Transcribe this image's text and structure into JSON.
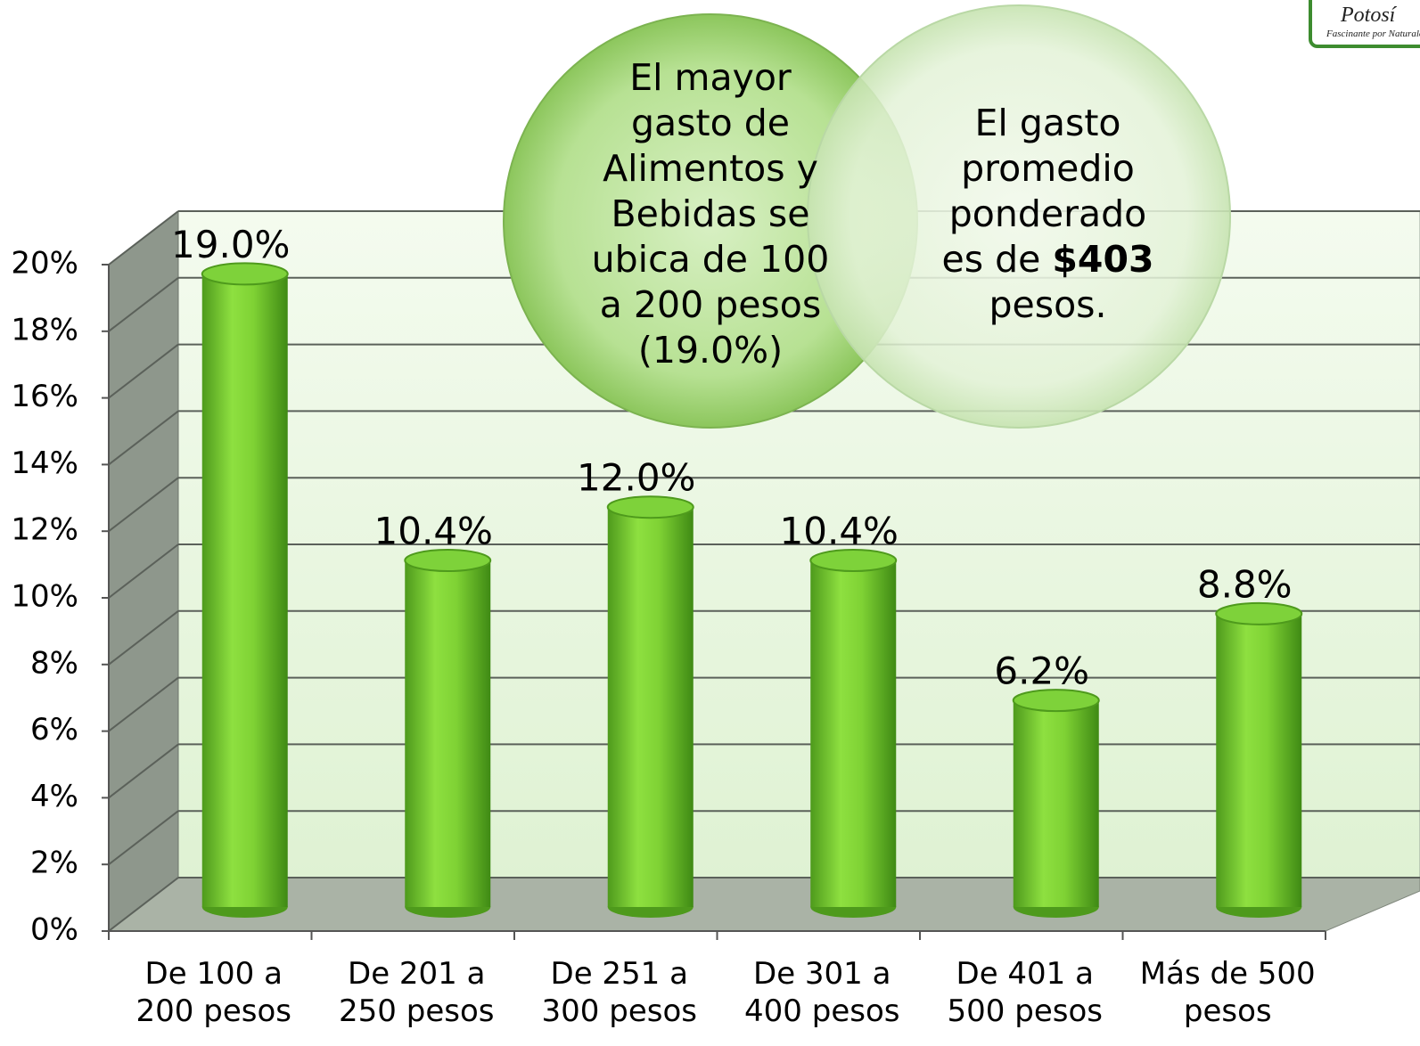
{
  "chart_data": {
    "type": "bar3d",
    "categories": [
      "De 100 a 200 pesos",
      "De 201 a 250 pesos",
      "De 251 a 300 pesos",
      "De 301 a 400 pesos",
      "De 401 a 500 pesos",
      "Más de 500 pesos"
    ],
    "values": [
      19.0,
      10.4,
      12.0,
      10.4,
      6.2,
      8.8
    ],
    "value_labels": [
      "19.0%",
      "10.4%",
      "12.0%",
      "10.4%",
      "6.2%",
      "8.8%"
    ],
    "color": "#7ed23a",
    "ylim": [
      0,
      20
    ],
    "yticks": [
      {
        "value": 0,
        "label": "0%"
      },
      {
        "value": 2,
        "label": "2%"
      },
      {
        "value": 4,
        "label": "4%"
      },
      {
        "value": 6,
        "label": "6%"
      },
      {
        "value": 8,
        "label": "8%"
      },
      {
        "value": 10,
        "label": "10%"
      },
      {
        "value": 12,
        "label": "12%"
      },
      {
        "value": 14,
        "label": "14%"
      },
      {
        "value": 16,
        "label": "16%"
      },
      {
        "value": 18,
        "label": "18%"
      },
      {
        "value": 20,
        "label": "20%"
      }
    ],
    "grid": true,
    "annotations": [
      {
        "text": "El mayor gasto de Alimentos y Bebidas se ubica de 100 a 200 pesos (19.0%)"
      },
      {
        "parts": [
          "El gasto promedio ponderado es de ",
          "$403",
          " pesos."
        ]
      }
    ]
  },
  "logo": {
    "title": "Potosí",
    "slogan": "Fascinante por Naturaleza"
  }
}
